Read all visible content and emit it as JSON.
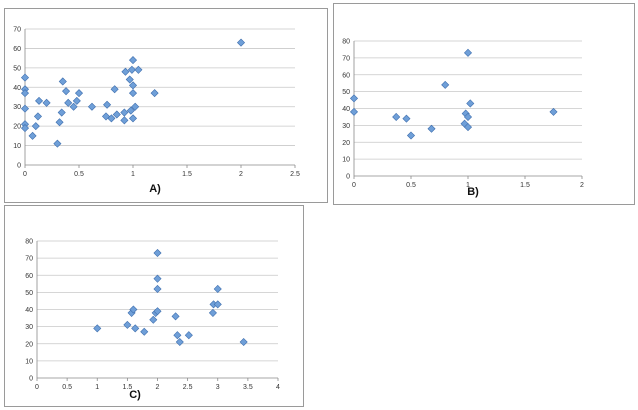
{
  "chart_data": [
    {
      "type": "scatter",
      "title": "",
      "xlabel": "",
      "ylabel": "",
      "panel_label": "A)",
      "xlim": [
        0,
        2.5
      ],
      "ylim": [
        0,
        70
      ],
      "xticks": [
        "0",
        "0.5",
        "1",
        "1.5",
        "2",
        "2.5"
      ],
      "yticks": [
        "0",
        "10",
        "20",
        "30",
        "40",
        "50",
        "60",
        "70"
      ],
      "grid": "horizontal",
      "marker_color": "#6f9fd8",
      "points": [
        [
          0,
          45
        ],
        [
          0,
          39
        ],
        [
          0,
          37
        ],
        [
          0,
          29
        ],
        [
          0,
          21
        ],
        [
          0,
          19
        ],
        [
          0.07,
          15
        ],
        [
          0.1,
          20
        ],
        [
          0.12,
          25
        ],
        [
          0.13,
          33
        ],
        [
          0.2,
          32
        ],
        [
          0.3,
          11
        ],
        [
          0.32,
          22
        ],
        [
          0.34,
          27
        ],
        [
          0.35,
          43
        ],
        [
          0.38,
          38
        ],
        [
          0.4,
          32
        ],
        [
          0.45,
          30
        ],
        [
          0.48,
          33
        ],
        [
          0.5,
          37
        ],
        [
          0.62,
          30
        ],
        [
          0.75,
          25
        ],
        [
          0.76,
          31
        ],
        [
          0.8,
          24
        ],
        [
          0.83,
          39
        ],
        [
          0.85,
          26
        ],
        [
          0.92,
          23
        ],
        [
          0.92,
          27
        ],
        [
          0.93,
          48
        ],
        [
          0.97,
          44
        ],
        [
          0.98,
          28
        ],
        [
          0.99,
          49
        ],
        [
          1.0,
          54
        ],
        [
          1.0,
          41
        ],
        [
          1.0,
          37
        ],
        [
          1.0,
          24
        ],
        [
          1.02,
          30
        ],
        [
          1.05,
          49
        ],
        [
          1.2,
          37
        ],
        [
          2.0,
          63
        ]
      ]
    },
    {
      "type": "scatter",
      "title": "",
      "xlabel": "",
      "ylabel": "",
      "panel_label": "B)",
      "xlim": [
        0,
        2
      ],
      "ylim": [
        0,
        80
      ],
      "xticks": [
        "0",
        "0.5",
        "1",
        "1.5",
        "2"
      ],
      "yticks": [
        "0",
        "10",
        "20",
        "30",
        "40",
        "50",
        "60",
        "70",
        "80"
      ],
      "grid": "horizontal",
      "marker_color": "#6f9fd8",
      "points": [
        [
          0,
          46
        ],
        [
          0,
          38
        ],
        [
          0.37,
          35
        ],
        [
          0.46,
          34
        ],
        [
          0.5,
          24
        ],
        [
          0.68,
          28
        ],
        [
          0.8,
          54
        ],
        [
          0.97,
          31
        ],
        [
          0.98,
          37
        ],
        [
          1.0,
          73
        ],
        [
          1.0,
          35
        ],
        [
          1.0,
          29
        ],
        [
          1.02,
          43
        ],
        [
          1.75,
          38
        ]
      ]
    },
    {
      "type": "scatter",
      "title": "",
      "xlabel": "",
      "ylabel": "",
      "panel_label": "C)",
      "xlim": [
        0,
        4
      ],
      "ylim": [
        0,
        80
      ],
      "xticks": [
        "0",
        "0.5",
        "1",
        "1.5",
        "2",
        "2.5",
        "3",
        "3.5",
        "4"
      ],
      "yticks": [
        "0",
        "10",
        "20",
        "30",
        "40",
        "50",
        "60",
        "70",
        "80"
      ],
      "grid": "horizontal",
      "marker_color": "#6f9fd8",
      "points": [
        [
          1.0,
          29
        ],
        [
          1.5,
          31
        ],
        [
          1.57,
          38
        ],
        [
          1.6,
          40
        ],
        [
          1.63,
          29
        ],
        [
          1.78,
          27
        ],
        [
          1.93,
          34
        ],
        [
          1.97,
          38
        ],
        [
          2.0,
          39
        ],
        [
          2.0,
          52
        ],
        [
          2.0,
          58
        ],
        [
          2.0,
          73
        ],
        [
          2.3,
          36
        ],
        [
          2.33,
          25
        ],
        [
          2.37,
          21
        ],
        [
          2.52,
          25
        ],
        [
          2.92,
          38
        ],
        [
          2.93,
          43
        ],
        [
          3.0,
          43
        ],
        [
          3.0,
          52
        ],
        [
          3.43,
          21
        ]
      ]
    }
  ]
}
